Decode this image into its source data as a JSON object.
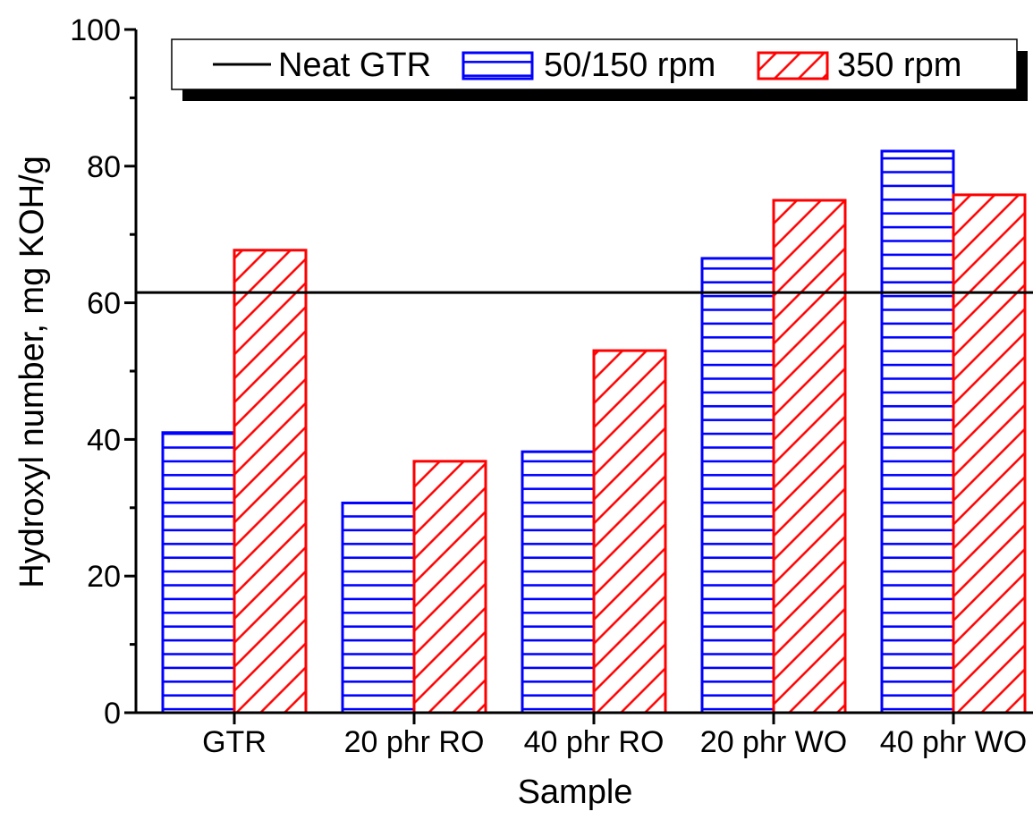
{
  "chart_data": {
    "type": "bar",
    "title": "",
    "xlabel": "Sample",
    "ylabel": "Hydroxyl number, mg KOH/g",
    "categories": [
      "GTR",
      "20 phr RO",
      "40 phr RO",
      "20 phr WO",
      "40 phr WO"
    ],
    "ylim": [
      0,
      100
    ],
    "yticks": [
      "0",
      "20",
      "40",
      "60",
      "80",
      "100"
    ],
    "series": [
      {
        "name": "50/150 rpm",
        "values": [
          41,
          30.7,
          38.2,
          66.5,
          82.2
        ],
        "color": "#0000ff",
        "pattern": "horizontal"
      },
      {
        "name": "350 rpm",
        "values": [
          67.7,
          36.8,
          53,
          75,
          75.8
        ],
        "color": "#ff0000",
        "pattern": "diagonal"
      }
    ],
    "reference_lines": [
      {
        "name": "Neat GTR",
        "value": 61.5,
        "color": "#000000"
      }
    ],
    "legend_position": "top-right",
    "grid": false
  }
}
